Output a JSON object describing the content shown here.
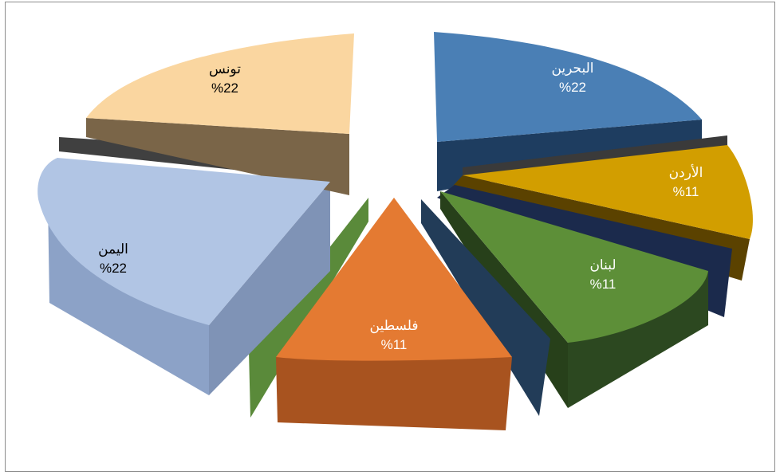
{
  "chart_data": {
    "type": "pie",
    "style": "3d-exploded",
    "slices": [
      {
        "name": "البحرين",
        "value_label": "%22",
        "value": 22,
        "color": "#4a7fb5"
      },
      {
        "name": "الأردن",
        "value_label": "%11",
        "value": 11,
        "color": "#d29e00"
      },
      {
        "name": "لبنان",
        "value_label": "%11",
        "value": 11,
        "color": "#5d8f38"
      },
      {
        "name": "فلسطين",
        "value_label": "%11",
        "value": 11,
        "color": "#e47a32"
      },
      {
        "name": "اليمن",
        "value_label": "%22",
        "value": 22,
        "color": "#a6bddf"
      },
      {
        "name": "تونس",
        "value_label": "%22",
        "value": 22,
        "color": "#f8d39a"
      }
    ]
  }
}
